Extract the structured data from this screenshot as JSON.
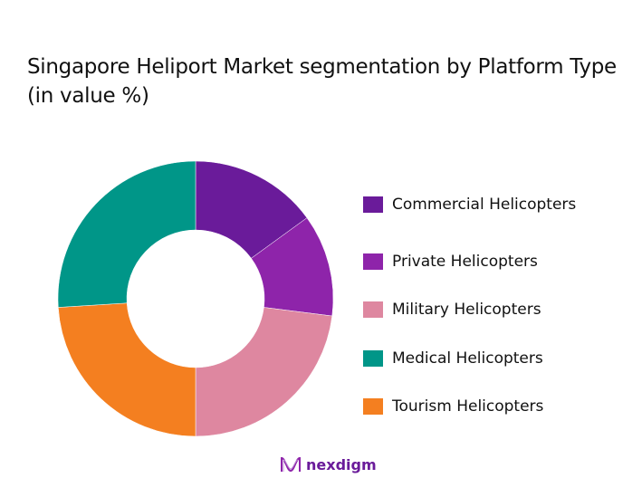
{
  "title": "Singapore Heliport Market segmentation by Platform Type (in value %)",
  "chart_data": {
    "type": "pie",
    "subtype": "donut",
    "title": "Singapore Heliport Market segmentation by Platform Type (in value %)",
    "categories": [
      "Commercial Helicopters",
      "Private Helicopters",
      "Military Helicopters",
      "Tourism Helicopters",
      "Medical Helicopters"
    ],
    "values": [
      15,
      12,
      23,
      24,
      26
    ],
    "colors": [
      "#6a1b9a",
      "#8e24aa",
      "#de87a0",
      "#f47f20",
      "#009688"
    ],
    "start_angle_deg": 0,
    "direction": "clockwise",
    "legend_position": "right",
    "data_labels": false
  },
  "legend": [
    {
      "label": "Commercial Helicopters",
      "color": "#6a1b9a"
    },
    {
      "label": "Private Helicopters",
      "color": "#8e24aa"
    },
    {
      "label": "Military Helicopters",
      "color": "#de87a0"
    },
    {
      "label": "Medical Helicopters",
      "color": "#009688"
    },
    {
      "label": "Tourism Helicopters",
      "color": "#f47f20"
    }
  ],
  "logo": {
    "text": "nexdigm"
  }
}
